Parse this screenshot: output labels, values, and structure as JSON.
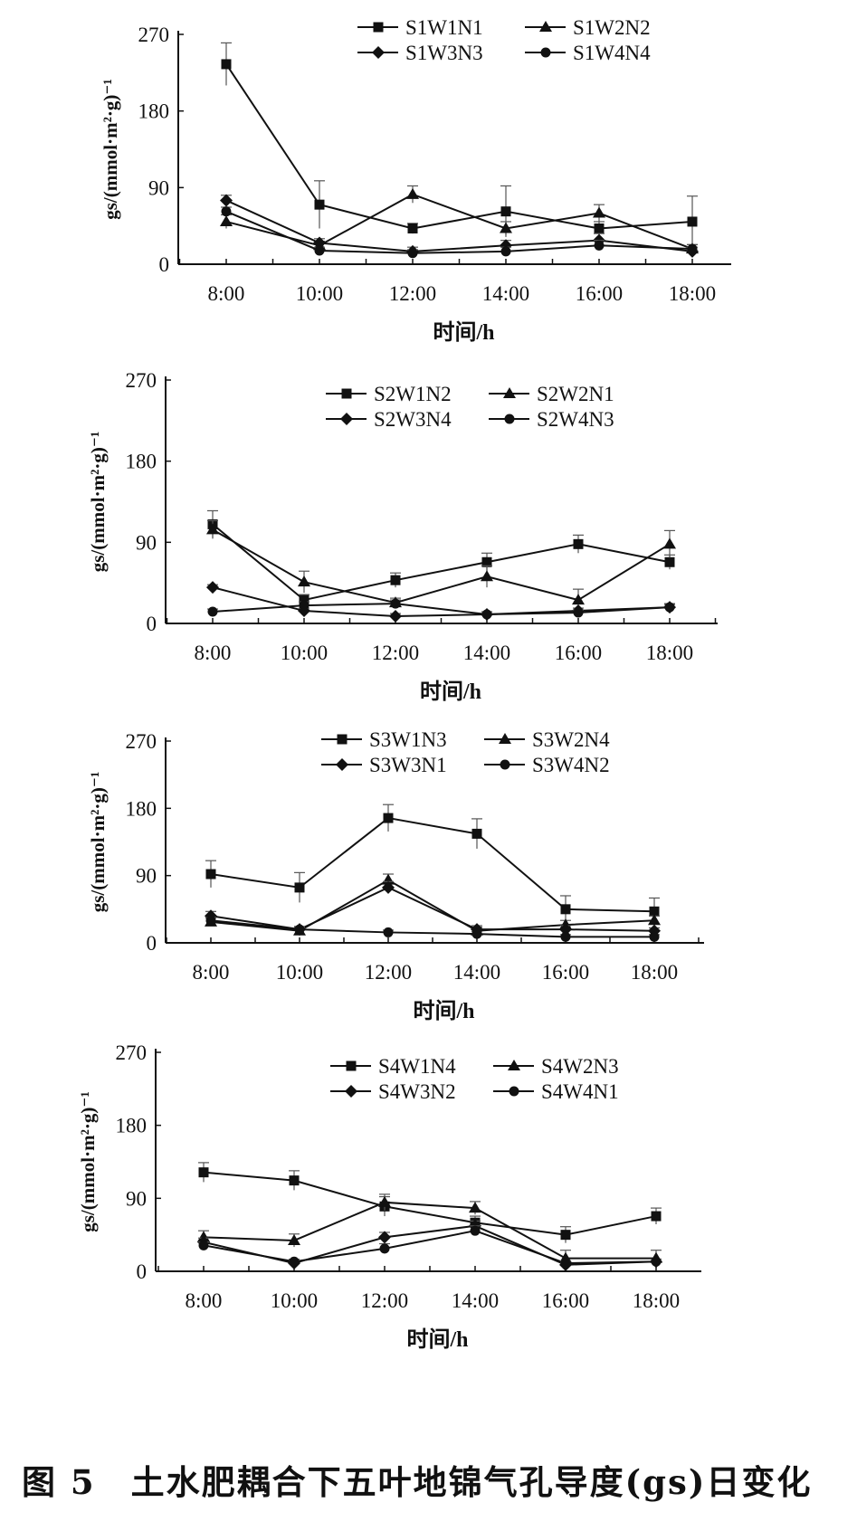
{
  "caption": "图 5　土水肥耦合下五叶地锦气孔导度(gs)日变化",
  "chart_data": [
    {
      "type": "line",
      "xlabel": "时间/h",
      "ylabel": "gs/(mmol·m²·g)⁻¹",
      "ylim": [
        0,
        270
      ],
      "yticks": [
        "0",
        "90",
        "180",
        "270"
      ],
      "categories": [
        "8:00",
        "10:00",
        "12:00",
        "14:00",
        "16:00",
        "18:00"
      ],
      "series": [
        {
          "name": "S1W1N1",
          "marker": "square",
          "values": [
            235,
            70,
            42,
            62,
            42,
            50
          ],
          "error": [
            25,
            28,
            6,
            30,
            8,
            30
          ]
        },
        {
          "name": "S1W2N2",
          "marker": "triangle",
          "values": [
            50,
            22,
            82,
            42,
            60,
            18
          ],
          "error": [
            8,
            5,
            10,
            8,
            10,
            5
          ]
        },
        {
          "name": "S1W3N3",
          "marker": "diamond",
          "values": [
            75,
            25,
            15,
            22,
            28,
            15
          ],
          "error": [
            6,
            5,
            5,
            6,
            8,
            5
          ]
        },
        {
          "name": "S1W4N4",
          "marker": "circle",
          "values": [
            62,
            16,
            13,
            15,
            22,
            18
          ],
          "error": [
            5,
            4,
            4,
            5,
            6,
            5
          ]
        }
      ]
    },
    {
      "type": "line",
      "xlabel": "时间/h",
      "ylabel": "gs/(mmol·m²·g)⁻¹",
      "ylim": [
        0,
        270
      ],
      "yticks": [
        "0",
        "90",
        "180",
        "270"
      ],
      "categories": [
        "8:00",
        "10:00",
        "12:00",
        "14:00",
        "16:00",
        "18:00"
      ],
      "series": [
        {
          "name": "S2W1N2",
          "marker": "square",
          "values": [
            110,
            26,
            48,
            68,
            88,
            68
          ],
          "error": [
            15,
            6,
            8,
            10,
            10,
            8
          ]
        },
        {
          "name": "S2W2N1",
          "marker": "triangle",
          "values": [
            104,
            46,
            23,
            52,
            26,
            88
          ],
          "error": [
            10,
            12,
            5,
            12,
            12,
            15
          ]
        },
        {
          "name": "S2W3N4",
          "marker": "diamond",
          "values": [
            40,
            14,
            8,
            10,
            14,
            18
          ],
          "error": [
            3,
            3,
            3,
            3,
            3,
            3
          ]
        },
        {
          "name": "S2W4N3",
          "marker": "circle",
          "values": [
            13,
            20,
            22,
            10,
            12,
            18
          ],
          "error": [
            3,
            4,
            4,
            3,
            3,
            4
          ]
        }
      ]
    },
    {
      "type": "line",
      "xlabel": "时间/h",
      "ylabel": "gs/(mmol·m²·g)⁻¹",
      "ylim": [
        0,
        270
      ],
      "yticks": [
        "0",
        "90",
        "180",
        "270"
      ],
      "categories": [
        "8:00",
        "10:00",
        "12:00",
        "14:00",
        "16:00",
        "18:00"
      ],
      "series": [
        {
          "name": "S3W1N3",
          "marker": "square",
          "values": [
            92,
            74,
            167,
            146,
            45,
            42
          ],
          "error": [
            18,
            20,
            18,
            20,
            18,
            18
          ]
        },
        {
          "name": "S3W2N4",
          "marker": "triangle",
          "values": [
            28,
            16,
            84,
            16,
            24,
            30
          ],
          "error": [
            5,
            4,
            8,
            5,
            6,
            6
          ]
        },
        {
          "name": "S3W3N1",
          "marker": "diamond",
          "values": [
            36,
            18,
            74,
            18,
            18,
            16
          ],
          "error": [
            6,
            4,
            8,
            5,
            5,
            4
          ]
        },
        {
          "name": "S3W4N2",
          "marker": "circle",
          "values": [
            30,
            18,
            14,
            12,
            8,
            8
          ],
          "error": [
            4,
            3,
            3,
            3,
            3,
            3
          ]
        }
      ]
    },
    {
      "type": "line",
      "xlabel": "时间/h",
      "ylabel": "gs/(mmol·m²·g)⁻¹",
      "ylim": [
        0,
        270
      ],
      "yticks": [
        "0",
        "90",
        "180",
        "270"
      ],
      "categories": [
        "8:00",
        "10:00",
        "12:00",
        "14:00",
        "16:00",
        "18:00"
      ],
      "series": [
        {
          "name": "S4W1N4",
          "marker": "square",
          "values": [
            122,
            112,
            80,
            60,
            45,
            68
          ],
          "error": [
            12,
            12,
            12,
            8,
            10,
            10
          ]
        },
        {
          "name": "S4W2N3",
          "marker": "triangle",
          "values": [
            42,
            38,
            85,
            78,
            16,
            16
          ],
          "error": [
            8,
            8,
            10,
            8,
            10,
            10
          ]
        },
        {
          "name": "S4W3N2",
          "marker": "diamond",
          "values": [
            36,
            10,
            42,
            56,
            8,
            12
          ],
          "error": [
            5,
            3,
            6,
            6,
            3,
            3
          ]
        },
        {
          "name": "S4W4N1",
          "marker": "circle",
          "values": [
            32,
            12,
            28,
            50,
            10,
            12
          ],
          "error": [
            4,
            3,
            6,
            6,
            3,
            3
          ]
        }
      ]
    }
  ]
}
